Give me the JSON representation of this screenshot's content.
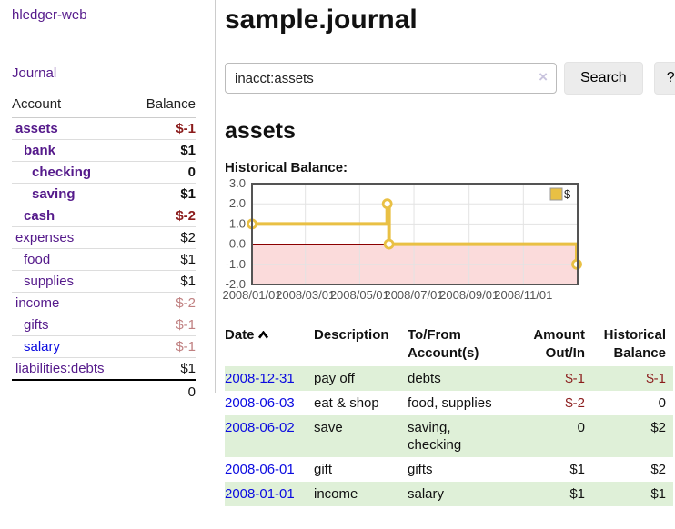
{
  "app": {
    "title": "hledger-web"
  },
  "colors": {
    "purple": "#551a8b",
    "blue": "#0b0be0",
    "black": "#111111",
    "negStrong": "#8b1c1c",
    "negMuted": "#c08081",
    "stripe_green": "#dff0d8",
    "accent_yellow": "#e9c044"
  },
  "sidebar": {
    "journal_label": "Journal",
    "headers": {
      "account": "Account",
      "balance": "Balance"
    },
    "accounts": [
      {
        "name": "assets",
        "balance": "$-1",
        "depth": 1,
        "bold": true,
        "name_color": "purple",
        "balance_color": "negStrong"
      },
      {
        "name": "bank",
        "balance": "$1",
        "depth": 2,
        "bold": true,
        "name_color": "purple",
        "balance_color": "black"
      },
      {
        "name": "checking",
        "balance": "0",
        "depth": 3,
        "bold": true,
        "name_color": "purple",
        "balance_color": "black"
      },
      {
        "name": "saving",
        "balance": "$1",
        "depth": 3,
        "bold": true,
        "name_color": "purple",
        "balance_color": "black"
      },
      {
        "name": "cash",
        "balance": "$-2",
        "depth": 2,
        "bold": true,
        "name_color": "purple",
        "balance_color": "negStrong"
      },
      {
        "name": "expenses",
        "balance": "$2",
        "depth": 1,
        "bold": false,
        "name_color": "purple",
        "balance_color": "black"
      },
      {
        "name": "food",
        "balance": "$1",
        "depth": 2,
        "bold": false,
        "name_color": "purple",
        "balance_color": "black"
      },
      {
        "name": "supplies",
        "balance": "$1",
        "depth": 2,
        "bold": false,
        "name_color": "purple",
        "balance_color": "black"
      },
      {
        "name": "income",
        "balance": "$-2",
        "depth": 1,
        "bold": false,
        "name_color": "purple",
        "balance_color": "negMuted"
      },
      {
        "name": "gifts",
        "balance": "$-1",
        "depth": 2,
        "bold": false,
        "name_color": "purple",
        "balance_color": "negMuted"
      },
      {
        "name": "salary",
        "balance": "$-1",
        "depth": 2,
        "bold": false,
        "name_color": "blue",
        "balance_color": "negMuted"
      },
      {
        "name": "liabilities:debts",
        "balance": "$1",
        "depth": 1,
        "bold": false,
        "name_color": "purple",
        "balance_color": "black"
      }
    ],
    "total": "0"
  },
  "main": {
    "title": "sample.journal",
    "search": {
      "value": "inacct:assets",
      "clear_icon": "×",
      "button_label": "Search",
      "help_label": "?"
    },
    "account_heading": "assets"
  },
  "chart_data": {
    "type": "line",
    "title": "Historical Balance:",
    "step": true,
    "x_type": "date",
    "x_range": [
      "2008-01-01",
      "2009-01-01"
    ],
    "ylim": [
      -2,
      3
    ],
    "y_ticks": [
      {
        "value": 3,
        "label": "3.0"
      },
      {
        "value": 2,
        "label": "2.0"
      },
      {
        "value": 1,
        "label": "1.0"
      },
      {
        "value": 0,
        "label": "0.0"
      },
      {
        "value": -1,
        "label": "-1.0"
      },
      {
        "value": -2,
        "label": "-2.0"
      }
    ],
    "x_ticks": [
      {
        "date": "2008-01-01",
        "label": "2008/01/01"
      },
      {
        "date": "2008-03-01",
        "label": "2008/03/01"
      },
      {
        "date": "2008-05-01",
        "label": "2008/05/01"
      },
      {
        "date": "2008-07-01",
        "label": "2008/07/01"
      },
      {
        "date": "2008-09-01",
        "label": "2008/09/01"
      },
      {
        "date": "2008-11-01",
        "label": "2008/11/01"
      }
    ],
    "series": [
      {
        "name": "$",
        "color": "#e9c044",
        "points": [
          {
            "date": "2008-01-01",
            "value": 1.0
          },
          {
            "date": "2008-06-01",
            "value": 2.0
          },
          {
            "date": "2008-06-03",
            "value": 0.0
          },
          {
            "date": "2008-12-31",
            "value": -1.0
          }
        ]
      }
    ],
    "legend": {
      "label": "$",
      "position": "top-right"
    },
    "negative_region_fill": "#fbdbdb",
    "zero_line_color": "#8b0000",
    "grid_color": "#e3e3e3",
    "border_color": "#545454",
    "tick_label_color": "#545454"
  },
  "register": {
    "headers": {
      "date": "Date",
      "description": "Description",
      "accounts": "To/From Account(s)",
      "amount": "Amount Out/In",
      "balance": "Historical Balance"
    },
    "sort": {
      "column": "date",
      "direction": "ascending"
    },
    "rows": [
      {
        "date": "2008-12-31",
        "description": "pay off",
        "accounts": "debts",
        "amount": "$-1",
        "amount_color": "negStrong",
        "balance": "$-1",
        "balance_color": "negStrong"
      },
      {
        "date": "2008-06-03",
        "description": "eat & shop",
        "accounts": "food, supplies",
        "amount": "$-2",
        "amount_color": "negStrong",
        "balance": "0",
        "balance_color": "black"
      },
      {
        "date": "2008-06-02",
        "description": "save",
        "accounts": "saving,\nchecking",
        "amount": "0",
        "amount_color": "black",
        "balance": "$2",
        "balance_color": "black"
      },
      {
        "date": "2008-06-01",
        "description": "gift",
        "accounts": "gifts",
        "amount": "$1",
        "amount_color": "black",
        "balance": "$2",
        "balance_color": "black"
      },
      {
        "date": "2008-01-01",
        "description": "income",
        "accounts": "salary",
        "amount": "$1",
        "amount_color": "black",
        "balance": "$1",
        "balance_color": "black"
      }
    ]
  }
}
